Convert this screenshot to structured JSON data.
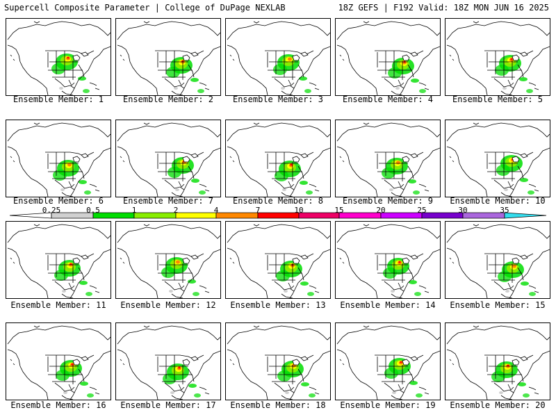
{
  "header": {
    "title_left": "Supercell Composite Parameter | College of DuPage NEXLAB",
    "title_right": "18Z GEFS | F192 Valid: 18Z MON JUN 16 2025"
  },
  "legend": {
    "ticks": [
      "0.25",
      "0.5",
      "1",
      "2",
      "4",
      "7",
      "10",
      "15",
      "20",
      "25",
      "30",
      "35"
    ],
    "colors": [
      "#ffffff",
      "#d0d0d0",
      "#00dd00",
      "#88ee00",
      "#ffff00",
      "#ff8800",
      "#ff0000",
      "#ee0066",
      "#ff00cc",
      "#cc00ff",
      "#7700cc",
      "#aa66dd",
      "#33ddee"
    ]
  },
  "panels": [
    {
      "label": "Ensemble Member: 1"
    },
    {
      "label": "Ensemble Member: 2"
    },
    {
      "label": "Ensemble Member: 3"
    },
    {
      "label": "Ensemble Member: 4"
    },
    {
      "label": "Ensemble Member: 5"
    },
    {
      "label": "Ensemble Member: 6"
    },
    {
      "label": "Ensemble Member: 7"
    },
    {
      "label": "Ensemble Member: 8"
    },
    {
      "label": "Ensemble Member: 9"
    },
    {
      "label": "Ensemble Member: 10"
    },
    {
      "label": "Ensemble Member: 11"
    },
    {
      "label": "Ensemble Member: 12"
    },
    {
      "label": "Ensemble Member: 13"
    },
    {
      "label": "Ensemble Member: 14"
    },
    {
      "label": "Ensemble Member: 15"
    },
    {
      "label": "Ensemble Member: 16"
    },
    {
      "label": "Ensemble Member: 17"
    },
    {
      "label": "Ensemble Member: 18"
    },
    {
      "label": "Ensemble Member: 19"
    },
    {
      "label": "Ensemble Member: 20"
    }
  ]
}
